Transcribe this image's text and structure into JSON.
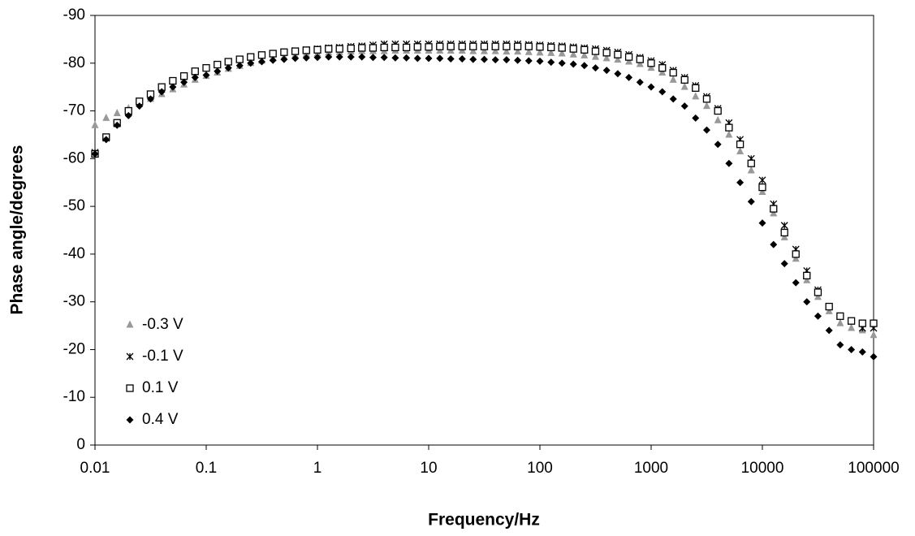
{
  "chart_data": {
    "type": "scatter",
    "x_label": "Frequency/Hz",
    "y_label": "Phase angle/degrees",
    "x_scale": "log",
    "xlim": [
      0.01,
      100000
    ],
    "xticks": [
      0.01,
      0.1,
      1,
      10,
      100,
      1000,
      10000,
      100000
    ],
    "ylim": [
      0,
      -90
    ],
    "yticks": [
      0,
      -10,
      -20,
      -30,
      -40,
      -50,
      -60,
      -70,
      -80,
      -90
    ],
    "grid": false,
    "legend_position": "lower left",
    "x": [
      0.01,
      0.0126,
      0.0158,
      0.02,
      0.0251,
      0.0316,
      0.0398,
      0.0501,
      0.0631,
      0.0794,
      0.1,
      0.126,
      0.158,
      0.2,
      0.251,
      0.316,
      0.398,
      0.501,
      0.631,
      0.794,
      1,
      1.26,
      1.58,
      2,
      2.51,
      3.16,
      3.98,
      5.01,
      6.31,
      7.94,
      10,
      12.6,
      15.8,
      20,
      25.1,
      31.6,
      39.8,
      50.1,
      63.1,
      79.4,
      100,
      126,
      158,
      200,
      251,
      316,
      398,
      501,
      631,
      794,
      1000,
      1260,
      1580,
      2000,
      2510,
      3160,
      3980,
      5010,
      6310,
      7940,
      10000,
      12600,
      15800,
      20000,
      25100,
      31600,
      39800,
      50100,
      63100,
      79400,
      100000
    ],
    "series": [
      {
        "name": "-0.3 V",
        "color": "#999999",
        "marker": "triangle",
        "values": [
          -67,
          -68.5,
          -69.5,
          -70.5,
          -71.5,
          -72.5,
          -73.5,
          -74.5,
          -75.5,
          -76.5,
          -77.3,
          -78,
          -78.8,
          -79.4,
          -80,
          -80.5,
          -81,
          -81.3,
          -81.6,
          -81.9,
          -82,
          -82.2,
          -82.3,
          -82.4,
          -82.5,
          -82.5,
          -82.5,
          -82.6,
          -82.6,
          -82.6,
          -82.6,
          -82.6,
          -82.6,
          -82.6,
          -82.5,
          -82.5,
          -82.5,
          -82.4,
          -82.4,
          -82.3,
          -82.2,
          -82.1,
          -82,
          -81.8,
          -81.6,
          -81.3,
          -81,
          -80.7,
          -80.3,
          -79.8,
          -79,
          -78,
          -76.5,
          -75,
          -73,
          -71,
          -68,
          -65,
          -61.5,
          -57.5,
          -53,
          -48.5,
          -43.5,
          -39,
          -34.5,
          -31,
          -28,
          -25.5,
          -24.5,
          -24,
          -23
        ]
      },
      {
        "name": "-0.1 V",
        "color": "#000000",
        "marker": "x",
        "values": [
          -61.3,
          -64.3,
          -67.3,
          -69.8,
          -72,
          -73.5,
          -75,
          -76.2,
          -77.2,
          -78.2,
          -79,
          -79.7,
          -80.3,
          -80.8,
          -81.3,
          -81.7,
          -82,
          -82.3,
          -82.6,
          -82.8,
          -83,
          -83.2,
          -83.3,
          -83.5,
          -83.6,
          -83.8,
          -84,
          -84,
          -84,
          -84,
          -84,
          -84,
          -84,
          -84,
          -84,
          -84,
          -84,
          -84,
          -84,
          -83.9,
          -83.8,
          -83.7,
          -83.6,
          -83.4,
          -83.2,
          -83,
          -82.7,
          -82.3,
          -81.8,
          -81.2,
          -80.5,
          -79.7,
          -78.5,
          -77,
          -75.3,
          -73,
          -70.5,
          -67.5,
          -64,
          -60,
          -55.5,
          -50.5,
          -46,
          -41,
          -36.5,
          -32.5,
          -29,
          -27,
          -26,
          -24.5,
          -24.5
        ]
      },
      {
        "name": "0.1 V",
        "color": "#000000",
        "marker": "square",
        "values": [
          -61,
          -64.5,
          -67.5,
          -70,
          -72,
          -73.5,
          -75,
          -76.3,
          -77.3,
          -78.3,
          -79,
          -79.7,
          -80.3,
          -80.8,
          -81.3,
          -81.7,
          -82,
          -82.3,
          -82.5,
          -82.7,
          -82.8,
          -83,
          -83,
          -83.1,
          -83.2,
          -83.2,
          -83.3,
          -83.3,
          -83.3,
          -83.4,
          -83.4,
          -83.5,
          -83.5,
          -83.5,
          -83.5,
          -83.5,
          -83.5,
          -83.5,
          -83.5,
          -83.5,
          -83.4,
          -83.3,
          -83.2,
          -83,
          -82.8,
          -82.5,
          -82.2,
          -81.8,
          -81.3,
          -80.8,
          -80,
          -79,
          -78,
          -76.5,
          -74.8,
          -72.5,
          -70,
          -66.5,
          -63,
          -59,
          -54,
          -49.5,
          -44.5,
          -40,
          -35.5,
          -32,
          -29,
          -27,
          -26,
          -25.5,
          -25.5
        ]
      },
      {
        "name": "0.4 V",
        "color": "#000000",
        "marker": "diamond",
        "values": [
          -61,
          -64,
          -67,
          -69,
          -71,
          -72.5,
          -74,
          -75,
          -76,
          -77,
          -77.5,
          -78.3,
          -79,
          -79.5,
          -80,
          -80.3,
          -80.6,
          -80.8,
          -81,
          -81.1,
          -81.2,
          -81.3,
          -81.3,
          -81.3,
          -81.3,
          -81.2,
          -81.2,
          -81.1,
          -81.1,
          -81,
          -81,
          -81,
          -80.9,
          -80.9,
          -80.8,
          -80.8,
          -80.7,
          -80.7,
          -80.6,
          -80.5,
          -80.4,
          -80.2,
          -80,
          -79.8,
          -79.5,
          -79,
          -78.5,
          -77.8,
          -77,
          -76,
          -75,
          -74,
          -72.5,
          -71,
          -68.5,
          -66,
          -63,
          -59,
          -55,
          -51,
          -46.5,
          -42,
          -38,
          -34,
          -30,
          -27,
          -24,
          -21,
          -20,
          -19.5,
          -18.5
        ]
      }
    ]
  }
}
